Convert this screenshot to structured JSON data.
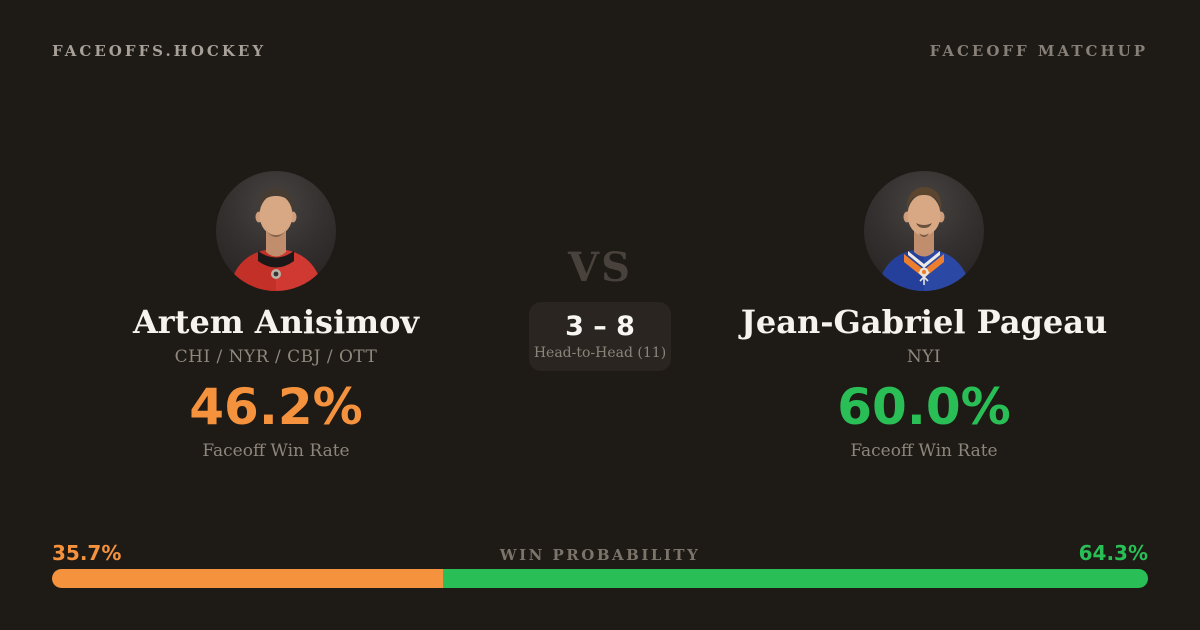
{
  "header": {
    "brand": "FACEOFFS.HOCKEY",
    "page_label": "FACEOFF MATCHUP"
  },
  "players": {
    "left": {
      "name": "Artem Anisimov",
      "teams": "CHI / NYR / CBJ / OTT",
      "win_rate": "46.2%",
      "win_rate_label": "Faceoff Win Rate",
      "color": "#f5923e",
      "avatar": "player-photo-red-jersey"
    },
    "right": {
      "name": "Jean-Gabriel Pageau",
      "teams": "NYI",
      "win_rate": "60.0%",
      "win_rate_label": "Faceoff Win Rate",
      "color": "#2abf56",
      "avatar": "player-photo-blue-jersey"
    }
  },
  "matchup": {
    "vs_label": "VS",
    "head_to_head_score": "3 – 8",
    "head_to_head_label": "Head-to-Head (11)"
  },
  "win_probability": {
    "label": "WIN PROBABILITY",
    "left_pct": "35.7%",
    "right_pct": "64.3%",
    "left_value": 35.7,
    "right_value": 64.3,
    "left_color": "#f5923e",
    "right_color": "#2abf56"
  }
}
